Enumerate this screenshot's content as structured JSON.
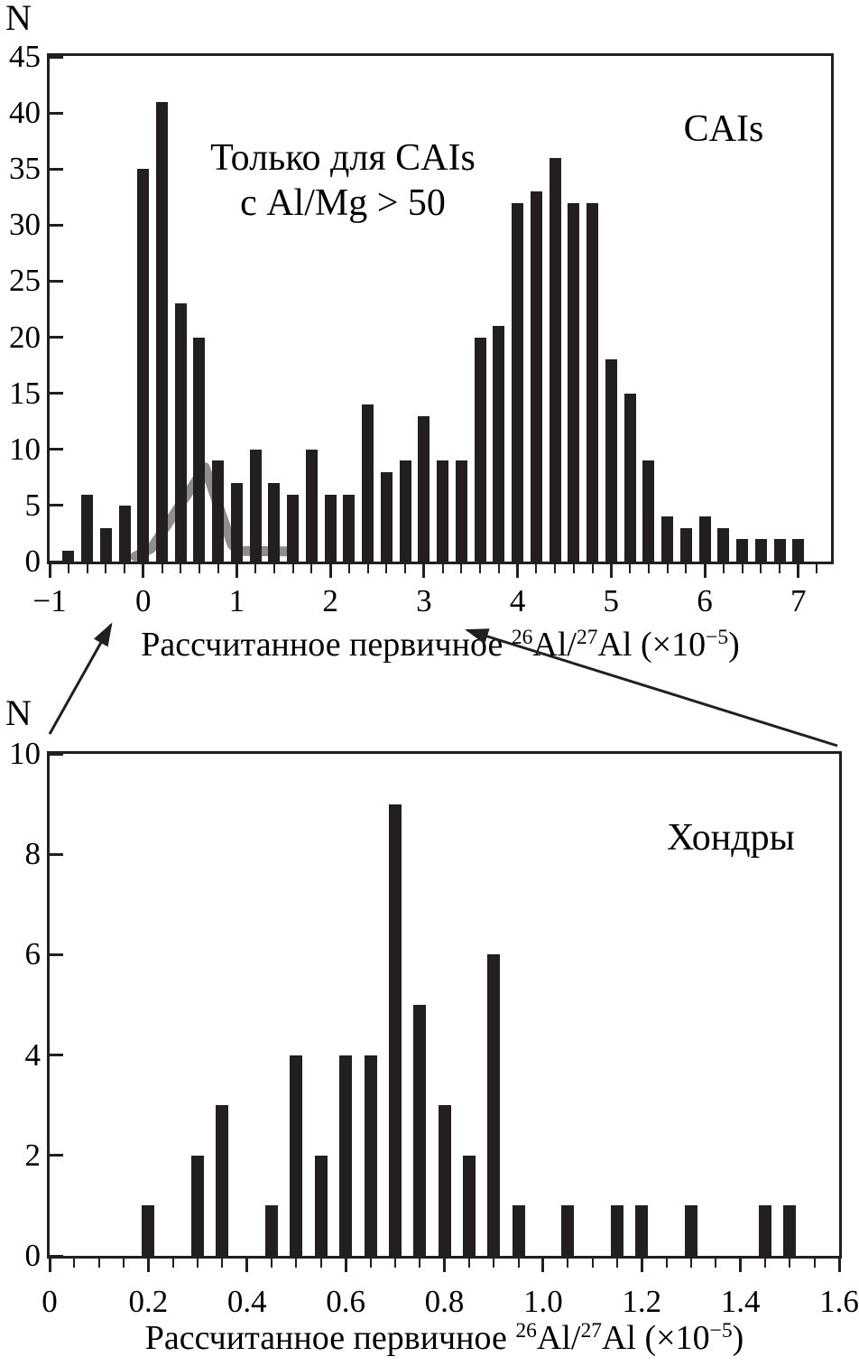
{
  "figure": {
    "background": "#ffffff",
    "bar_color": "#231f20",
    "axis_color": "#231f20",
    "text_color": "#000000",
    "overlay_color": "#8e8e8e"
  },
  "chart_data": [
    {
      "id": "cais-histogram",
      "type": "bar",
      "panel_label": "CAIs",
      "annotation_lines": [
        "Только для CAIs",
        "с Al/Mg > 50"
      ],
      "ylabel": "N",
      "xlabel": "Рассчитанное первичное ²⁶Al/²⁷Al (×10⁻⁵)",
      "xlabel_parts": {
        "t1": "Рассчитанное первичное ",
        "sup1": "26",
        "t2": "Al/",
        "sup2": "27",
        "t3": "Al (×10",
        "sup3": "−5",
        "t4": ")"
      },
      "xlim": [
        -1,
        7.35
      ],
      "ylim": [
        0,
        45
      ],
      "x_major_ticks": [
        -1,
        0,
        1,
        2,
        3,
        4,
        5,
        6,
        7
      ],
      "x_major_tick_labels": [
        "−1",
        "0",
        "1",
        "2",
        "3",
        "4",
        "5",
        "6",
        "7"
      ],
      "x_minor_tick_step": 0.2,
      "y_ticks": [
        0,
        5,
        10,
        15,
        20,
        25,
        30,
        35,
        40,
        45
      ],
      "y_tick_labels": [
        "0",
        "5",
        "10",
        "15",
        "20",
        "25",
        "30",
        "35",
        "40",
        "45"
      ],
      "bin_width": 0.2,
      "x": [
        -0.8,
        -0.6,
        -0.4,
        -0.2,
        0,
        0.2,
        0.4,
        0.6,
        0.8,
        1.0,
        1.2,
        1.4,
        1.6,
        1.8,
        2.0,
        2.2,
        2.4,
        2.6,
        2.8,
        3.0,
        3.2,
        3.4,
        3.6,
        3.8,
        4.0,
        4.2,
        4.4,
        4.6,
        4.8,
        5.0,
        5.2,
        5.4,
        5.6,
        5.8,
        6.0,
        6.2,
        6.4,
        6.6,
        6.8,
        7.0
      ],
      "values": [
        1,
        6,
        3,
        5,
        35,
        41,
        23,
        20,
        9,
        7,
        10,
        7,
        6,
        10,
        6,
        6,
        14,
        8,
        9,
        13,
        9,
        9,
        20,
        21,
        32,
        33,
        36,
        32,
        32,
        18,
        15,
        9,
        4,
        3,
        4,
        3,
        2,
        2,
        2,
        2
      ],
      "overlay_outline": {
        "label": "chondrule-range-outline",
        "color": "#8e8e8e",
        "points_xy": [
          [
            -0.085,
            0.45
          ],
          [
            0.09,
            1.2
          ],
          [
            0.66,
            8.4
          ],
          [
            0.95,
            1.5
          ],
          [
            1.03,
            0.95
          ],
          [
            1.54,
            0.9
          ]
        ]
      }
    },
    {
      "id": "chondrule-histogram",
      "type": "bar",
      "panel_label": "Хондры",
      "ylabel": "N",
      "xlabel": "Рассчитанное первичное ²⁶Al/²⁷Al (×10⁻⁵)",
      "xlabel_parts": {
        "t1": "Рассчитанное первичное ",
        "sup1": "26",
        "t2": "Al/",
        "sup2": "27",
        "t3": "Al (×10",
        "sup3": "−5",
        "t4": ")"
      },
      "xlim": [
        0,
        1.6
      ],
      "ylim": [
        0,
        10
      ],
      "x_major_ticks": [
        0,
        0.2,
        0.4,
        0.6,
        0.8,
        1.0,
        1.2,
        1.4,
        1.6
      ],
      "x_major_tick_labels": [
        "0",
        "0.2",
        "0.4",
        "0.6",
        "0.8",
        "1.0",
        "1.2",
        "1.4",
        "1.6"
      ],
      "x_minor_tick_step": 0.05,
      "y_ticks": [
        0,
        2,
        4,
        6,
        8,
        10
      ],
      "y_tick_labels": [
        "0",
        "2",
        "4",
        "6",
        "8",
        "10"
      ],
      "bin_width": 0.05,
      "x": [
        0.2,
        0.3,
        0.35,
        0.45,
        0.5,
        0.55,
        0.6,
        0.65,
        0.7,
        0.75,
        0.8,
        0.85,
        0.9,
        0.95,
        1.05,
        1.15,
        1.2,
        1.3,
        1.45,
        1.5
      ],
      "values": [
        1,
        2,
        3,
        1,
        4,
        2,
        4,
        4,
        9,
        5,
        3,
        2,
        6,
        1,
        1,
        1,
        1,
        1,
        1,
        1
      ]
    }
  ]
}
